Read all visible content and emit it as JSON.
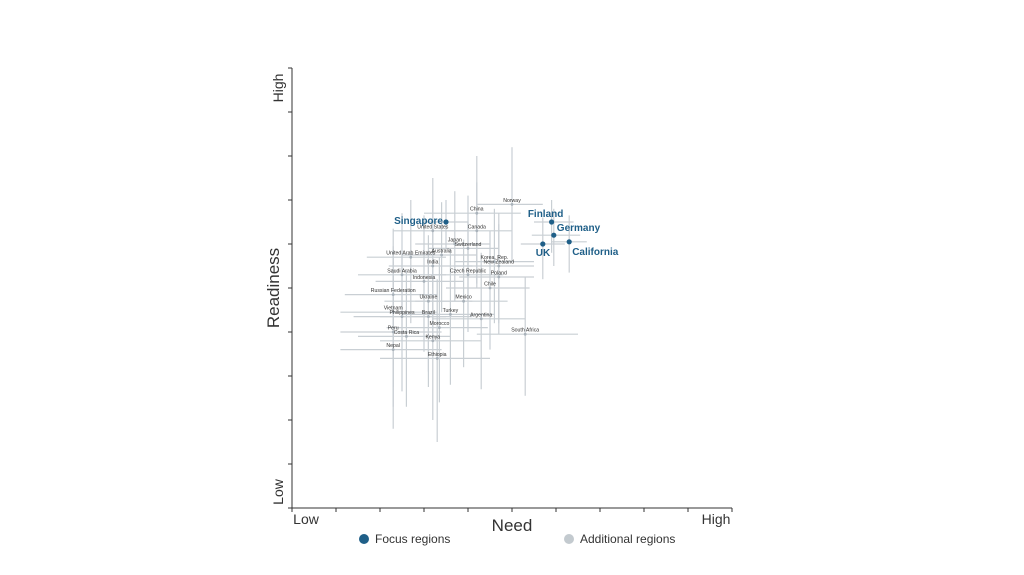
{
  "colors": {
    "focus": "#1f5f88",
    "additional": "#c3cacf",
    "error_bar": "#c9cfd4",
    "axis": "#333333"
  },
  "chart_data": {
    "type": "scatter",
    "xlabel": "Need",
    "ylabel": "Readiness",
    "x_low_label": "Low",
    "x_high_label": "High",
    "y_low_label": "Low",
    "y_high_label": "High",
    "xlim": [
      0,
      10
    ],
    "ylim": [
      0,
      10
    ],
    "grid": false,
    "legend": {
      "placement": "bottom",
      "items": [
        {
          "label": "Focus regions",
          "color": "#1f5f88"
        },
        {
          "label": "Additional regions",
          "color": "#c3cacf"
        }
      ]
    },
    "series": [
      {
        "name": "Focus regions",
        "points": [
          {
            "label": "Finland",
            "x": 5.9,
            "y": 6.5,
            "xerr": [
              0.4,
              0.5
            ],
            "yerr": [
              0.7,
              0.5
            ]
          },
          {
            "label": "Germany",
            "x": 5.95,
            "y": 6.2,
            "xerr": [
              0.5,
              0.6
            ],
            "yerr": [
              0.7,
              0.6
            ]
          },
          {
            "label": "UK",
            "x": 5.7,
            "y": 6.0,
            "xerr": [
              0.5,
              0.5
            ],
            "yerr": [
              0.8,
              0.6
            ]
          },
          {
            "label": "California",
            "x": 6.3,
            "y": 6.05,
            "xerr": [
              0.4,
              0.4
            ],
            "yerr": [
              0.7,
              0.6
            ]
          },
          {
            "label": "Singapore",
            "x": 3.5,
            "y": 6.5,
            "xerr": [
              0.5,
              0.5
            ],
            "yerr": [
              0.6,
              0.5
            ]
          }
        ]
      },
      {
        "name": "Additional regions",
        "points": [
          {
            "label": "China",
            "x": 4.2,
            "y": 6.7,
            "xerr": [
              1.2,
              1.0
            ],
            "yerr": [
              1.6,
              1.3
            ]
          },
          {
            "label": "Norway",
            "x": 5.0,
            "y": 6.9,
            "xerr": [
              0.8,
              0.7
            ],
            "yerr": [
              1.3,
              1.3
            ]
          },
          {
            "label": "United States",
            "x": 3.2,
            "y": 6.3,
            "xerr": [
              0.9,
              0.8
            ],
            "yerr": [
              1.3,
              1.2
            ]
          },
          {
            "label": "Canada",
            "x": 4.2,
            "y": 6.3,
            "xerr": [
              0.8,
              0.8
            ],
            "yerr": [
              1.3,
              1.1
            ]
          },
          {
            "label": "Japan",
            "x": 3.7,
            "y": 6.0,
            "xerr": [
              0.9,
              0.8
            ],
            "yerr": [
              1.3,
              1.2
            ]
          },
          {
            "label": "Switzerland",
            "x": 4.0,
            "y": 5.9,
            "xerr": [
              0.9,
              0.7
            ],
            "yerr": [
              1.2,
              1.2
            ]
          },
          {
            "label": "United Arab Emirates",
            "x": 2.7,
            "y": 5.7,
            "xerr": [
              1.0,
              0.8
            ],
            "yerr": [
              1.5,
              1.3
            ]
          },
          {
            "label": "Australia",
            "x": 3.4,
            "y": 5.75,
            "xerr": [
              0.9,
              0.8
            ],
            "yerr": [
              1.3,
              1.2
            ]
          },
          {
            "label": "Korea, Rep.",
            "x": 4.6,
            "y": 5.6,
            "xerr": [
              0.9,
              0.9
            ],
            "yerr": [
              1.4,
              1.2
            ]
          },
          {
            "label": "New Zealand",
            "x": 4.7,
            "y": 5.5,
            "xerr": [
              1.0,
              0.8
            ],
            "yerr": [
              1.3,
              1.2
            ]
          },
          {
            "label": "India",
            "x": 3.2,
            "y": 5.5,
            "xerr": [
              1.0,
              0.9
            ],
            "yerr": [
              1.6,
              1.5
            ]
          },
          {
            "label": "Poland",
            "x": 4.7,
            "y": 5.25,
            "xerr": [
              0.9,
              0.8
            ],
            "yerr": [
              1.3,
              1.2
            ]
          },
          {
            "label": "Saudi Arabia",
            "x": 2.5,
            "y": 5.3,
            "xerr": [
              1.0,
              1.0
            ],
            "yerr": [
              1.5,
              1.4
            ]
          },
          {
            "label": "Czech Republic",
            "x": 4.0,
            "y": 5.3,
            "xerr": [
              0.9,
              0.8
            ],
            "yerr": [
              1.3,
              1.2
            ]
          },
          {
            "label": "Indonesia",
            "x": 3.0,
            "y": 5.15,
            "xerr": [
              1.1,
              0.9
            ],
            "yerr": [
              1.6,
              1.5
            ]
          },
          {
            "label": "Chile",
            "x": 4.5,
            "y": 5.0,
            "xerr": [
              1.0,
              0.9
            ],
            "yerr": [
              1.4,
              1.3
            ]
          },
          {
            "label": "Russian Federation",
            "x": 2.3,
            "y": 4.85,
            "xerr": [
              1.1,
              1.0
            ],
            "yerr": [
              1.6,
              1.5
            ]
          },
          {
            "label": "Ukraine",
            "x": 3.1,
            "y": 4.7,
            "xerr": [
              1.0,
              1.0
            ],
            "yerr": [
              1.6,
              1.5
            ]
          },
          {
            "label": "Mexico",
            "x": 3.9,
            "y": 4.7,
            "xerr": [
              1.1,
              1.0
            ],
            "yerr": [
              1.5,
              1.4
            ]
          },
          {
            "label": "Vietnam",
            "x": 2.3,
            "y": 4.45,
            "xerr": [
              1.2,
              1.0
            ],
            "yerr": [
              1.7,
              1.5
            ]
          },
          {
            "label": "Philippines",
            "x": 2.5,
            "y": 4.35,
            "xerr": [
              1.1,
              1.0
            ],
            "yerr": [
              1.7,
              1.5
            ]
          },
          {
            "label": "Brazil",
            "x": 3.1,
            "y": 4.35,
            "xerr": [
              1.1,
              1.0
            ],
            "yerr": [
              1.6,
              1.5
            ]
          },
          {
            "label": "Turkey",
            "x": 3.6,
            "y": 4.4,
            "xerr": [
              1.1,
              1.0
            ],
            "yerr": [
              1.6,
              1.5
            ]
          },
          {
            "label": "Argentina",
            "x": 4.3,
            "y": 4.3,
            "xerr": [
              1.1,
              1.0
            ],
            "yerr": [
              1.6,
              1.5
            ]
          },
          {
            "label": "Morocco",
            "x": 3.35,
            "y": 4.1,
            "xerr": [
              1.2,
              1.1
            ],
            "yerr": [
              1.7,
              1.6
            ]
          },
          {
            "label": "Peru",
            "x": 2.3,
            "y": 4.0,
            "xerr": [
              1.2,
              1.1
            ],
            "yerr": [
              1.7,
              1.6
            ]
          },
          {
            "label": "Costa Rica",
            "x": 2.6,
            "y": 3.9,
            "xerr": [
              1.1,
              1.0
            ],
            "yerr": [
              1.6,
              1.5
            ]
          },
          {
            "label": "Kenya",
            "x": 3.2,
            "y": 3.8,
            "xerr": [
              1.2,
              1.1
            ],
            "yerr": [
              1.8,
              1.6
            ]
          },
          {
            "label": "South Africa",
            "x": 5.3,
            "y": 3.95,
            "xerr": [
              1.1,
              1.2
            ],
            "yerr": [
              1.4,
              1.3
            ]
          },
          {
            "label": "Nepal",
            "x": 2.3,
            "y": 3.6,
            "xerr": [
              1.2,
              1.1
            ],
            "yerr": [
              1.8,
              1.6
            ]
          },
          {
            "label": "Ethiopia",
            "x": 3.3,
            "y": 3.4,
            "xerr": [
              1.3,
              1.2
            ],
            "yerr": [
              1.9,
              1.8
            ]
          }
        ]
      }
    ]
  }
}
